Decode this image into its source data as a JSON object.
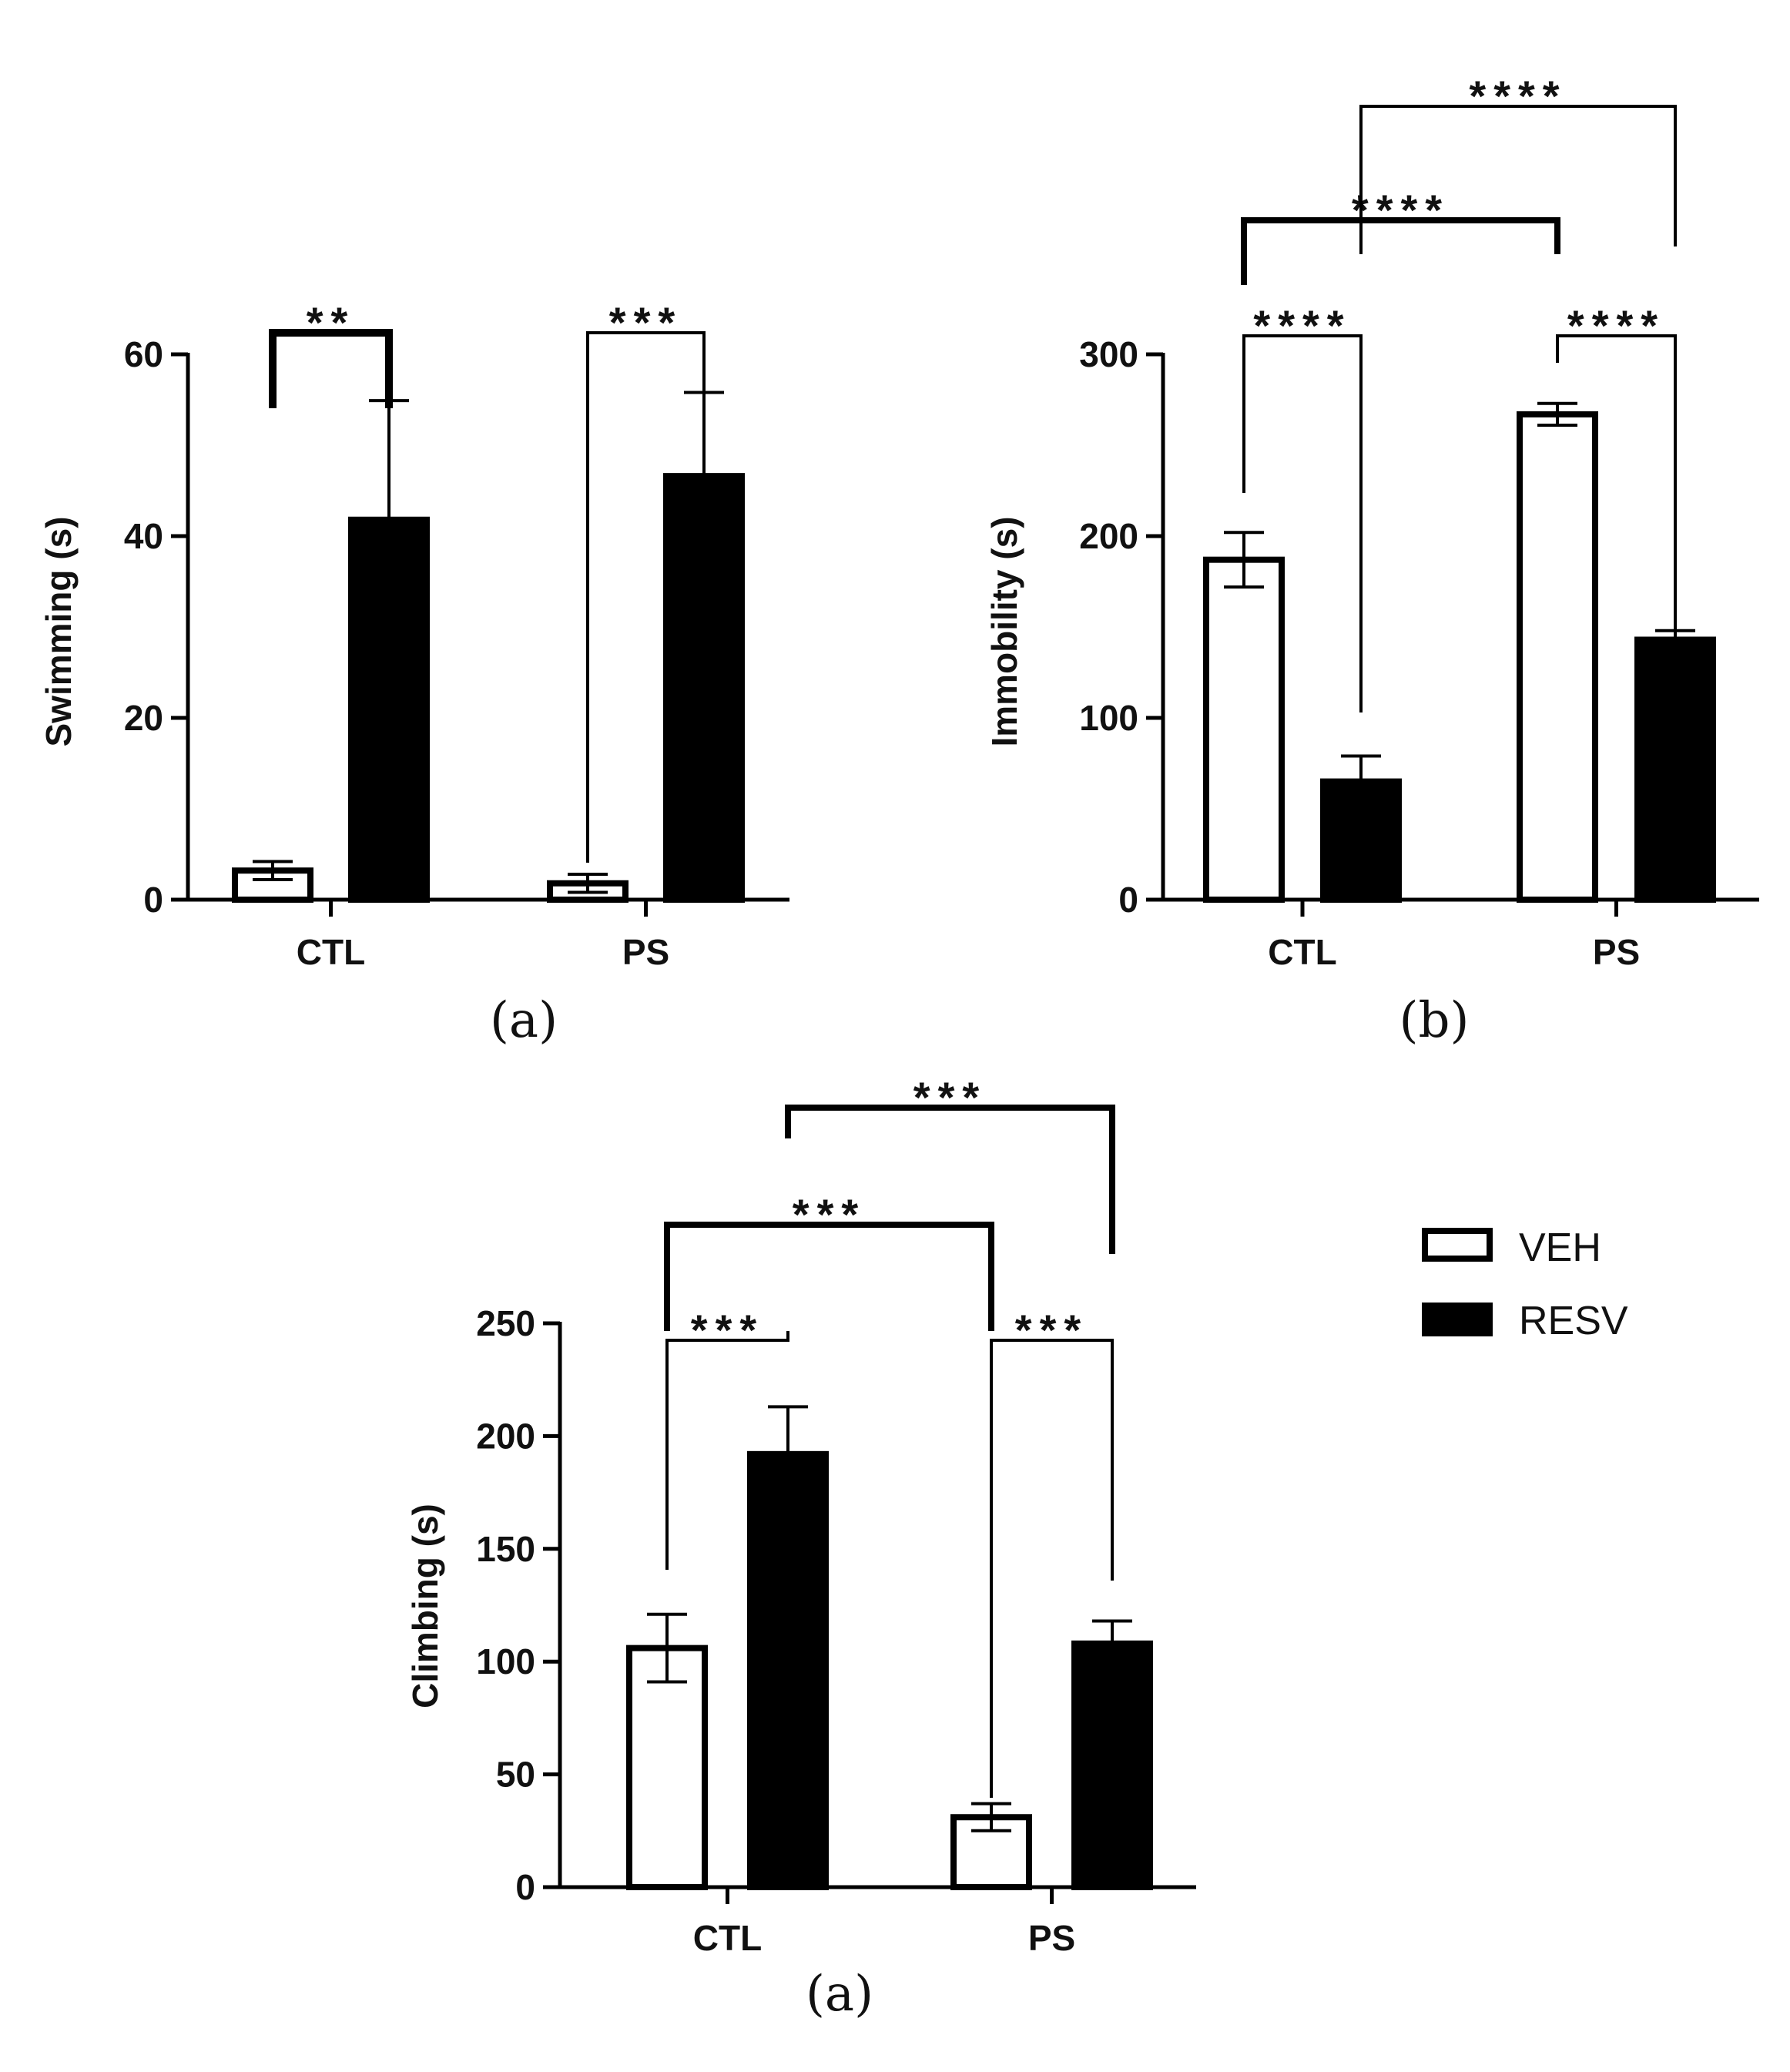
{
  "legend": [
    {
      "label": "VEH",
      "fill": "#ffffff"
    },
    {
      "label": "RESV",
      "fill": "#000000"
    }
  ],
  "colors": {
    "veh": "#ffffff",
    "resv": "#000000",
    "stroke": "#000000"
  },
  "chart_data": [
    {
      "type": "bar",
      "panel_label": "(a)",
      "ylabel": "Swimming (s)",
      "ylim": [
        0,
        60
      ],
      "yticks": [
        0,
        20,
        40,
        60
      ],
      "categories": [
        "CTL",
        "PS"
      ],
      "series": [
        {
          "name": "VEH",
          "values": [
            3.2,
            1.8
          ],
          "errors": [
            1.0,
            1.0
          ]
        },
        {
          "name": "RESV",
          "values": [
            41.8,
            46.6
          ],
          "errors": [
            13.1,
            9.2
          ]
        }
      ],
      "significance": [
        {
          "from": [
            0,
            0
          ],
          "to": [
            0,
            1
          ],
          "label": "**"
        },
        {
          "from": [
            1,
            0
          ],
          "to": [
            1,
            1
          ],
          "label": "***"
        }
      ]
    },
    {
      "type": "bar",
      "panel_label": "(b)",
      "ylabel": "Immobility (s)",
      "ylim": [
        0,
        300
      ],
      "yticks": [
        0,
        100,
        200,
        300
      ],
      "categories": [
        "CTL",
        "PS"
      ],
      "series": [
        {
          "name": "VEH",
          "values": [
            187,
            267
          ],
          "errors": [
            15,
            6
          ]
        },
        {
          "name": "RESV",
          "values": [
            65,
            143
          ],
          "errors": [
            14,
            5
          ]
        }
      ],
      "significance": [
        {
          "from": [
            0,
            0
          ],
          "to": [
            0,
            1
          ],
          "label": "****"
        },
        {
          "from": [
            1,
            0
          ],
          "to": [
            1,
            1
          ],
          "label": "****"
        },
        {
          "from": [
            0,
            0
          ],
          "to": [
            1,
            0
          ],
          "label": "****"
        },
        {
          "from": [
            0,
            1
          ],
          "to": [
            1,
            1
          ],
          "label": "****"
        }
      ]
    },
    {
      "type": "bar",
      "panel_label": "(a)",
      "ylabel": "Climbing (s)",
      "ylim": [
        0,
        250
      ],
      "yticks": [
        0,
        50,
        100,
        150,
        200,
        250
      ],
      "categories": [
        "CTL",
        "PS"
      ],
      "series": [
        {
          "name": "VEH",
          "values": [
            106,
            31
          ],
          "errors": [
            15,
            6
          ]
        },
        {
          "name": "RESV",
          "values": [
            192,
            108
          ],
          "errors": [
            21,
            10
          ]
        }
      ],
      "significance": [
        {
          "from": [
            0,
            0
          ],
          "to": [
            0,
            1
          ],
          "label": "***"
        },
        {
          "from": [
            1,
            0
          ],
          "to": [
            1,
            1
          ],
          "label": "***"
        },
        {
          "from": [
            0,
            0
          ],
          "to": [
            1,
            0
          ],
          "label": "***"
        },
        {
          "from": [
            0,
            1
          ],
          "to": [
            1,
            1
          ],
          "label": "***"
        }
      ]
    }
  ]
}
